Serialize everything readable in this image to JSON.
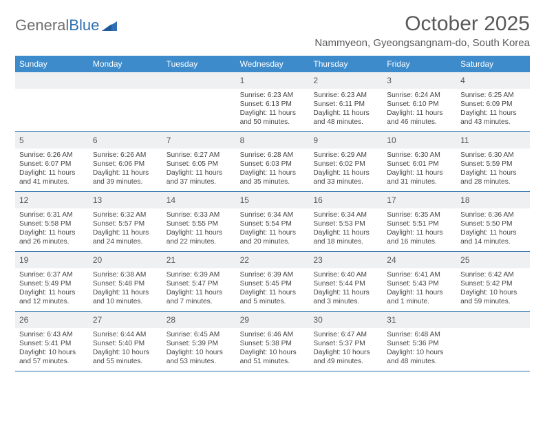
{
  "logo": {
    "text1": "General",
    "text2": "Blue"
  },
  "header": {
    "title": "October 2025",
    "subtitle": "Nammyeon, Gyeongsangnam-do, South Korea"
  },
  "colors": {
    "header_bar": "#3d8bca",
    "week_border": "#2e6fa8",
    "daynum_bg": "#eef0f2",
    "title_color": "#595959",
    "text_color": "#444444",
    "logo_gray": "#6f6f6f",
    "logo_blue": "#2f6fb3"
  },
  "weekdays": [
    "Sunday",
    "Monday",
    "Tuesday",
    "Wednesday",
    "Thursday",
    "Friday",
    "Saturday"
  ],
  "weeks": [
    [
      {
        "n": "",
        "lines": [
          "",
          "",
          "",
          ""
        ]
      },
      {
        "n": "",
        "lines": [
          "",
          "",
          "",
          ""
        ]
      },
      {
        "n": "",
        "lines": [
          "",
          "",
          "",
          ""
        ]
      },
      {
        "n": "1",
        "lines": [
          "Sunrise: 6:23 AM",
          "Sunset: 6:13 PM",
          "Daylight: 11 hours",
          "and 50 minutes."
        ]
      },
      {
        "n": "2",
        "lines": [
          "Sunrise: 6:23 AM",
          "Sunset: 6:11 PM",
          "Daylight: 11 hours",
          "and 48 minutes."
        ]
      },
      {
        "n": "3",
        "lines": [
          "Sunrise: 6:24 AM",
          "Sunset: 6:10 PM",
          "Daylight: 11 hours",
          "and 46 minutes."
        ]
      },
      {
        "n": "4",
        "lines": [
          "Sunrise: 6:25 AM",
          "Sunset: 6:09 PM",
          "Daylight: 11 hours",
          "and 43 minutes."
        ]
      }
    ],
    [
      {
        "n": "5",
        "lines": [
          "Sunrise: 6:26 AM",
          "Sunset: 6:07 PM",
          "Daylight: 11 hours",
          "and 41 minutes."
        ]
      },
      {
        "n": "6",
        "lines": [
          "Sunrise: 6:26 AM",
          "Sunset: 6:06 PM",
          "Daylight: 11 hours",
          "and 39 minutes."
        ]
      },
      {
        "n": "7",
        "lines": [
          "Sunrise: 6:27 AM",
          "Sunset: 6:05 PM",
          "Daylight: 11 hours",
          "and 37 minutes."
        ]
      },
      {
        "n": "8",
        "lines": [
          "Sunrise: 6:28 AM",
          "Sunset: 6:03 PM",
          "Daylight: 11 hours",
          "and 35 minutes."
        ]
      },
      {
        "n": "9",
        "lines": [
          "Sunrise: 6:29 AM",
          "Sunset: 6:02 PM",
          "Daylight: 11 hours",
          "and 33 minutes."
        ]
      },
      {
        "n": "10",
        "lines": [
          "Sunrise: 6:30 AM",
          "Sunset: 6:01 PM",
          "Daylight: 11 hours",
          "and 31 minutes."
        ]
      },
      {
        "n": "11",
        "lines": [
          "Sunrise: 6:30 AM",
          "Sunset: 5:59 PM",
          "Daylight: 11 hours",
          "and 28 minutes."
        ]
      }
    ],
    [
      {
        "n": "12",
        "lines": [
          "Sunrise: 6:31 AM",
          "Sunset: 5:58 PM",
          "Daylight: 11 hours",
          "and 26 minutes."
        ]
      },
      {
        "n": "13",
        "lines": [
          "Sunrise: 6:32 AM",
          "Sunset: 5:57 PM",
          "Daylight: 11 hours",
          "and 24 minutes."
        ]
      },
      {
        "n": "14",
        "lines": [
          "Sunrise: 6:33 AM",
          "Sunset: 5:55 PM",
          "Daylight: 11 hours",
          "and 22 minutes."
        ]
      },
      {
        "n": "15",
        "lines": [
          "Sunrise: 6:34 AM",
          "Sunset: 5:54 PM",
          "Daylight: 11 hours",
          "and 20 minutes."
        ]
      },
      {
        "n": "16",
        "lines": [
          "Sunrise: 6:34 AM",
          "Sunset: 5:53 PM",
          "Daylight: 11 hours",
          "and 18 minutes."
        ]
      },
      {
        "n": "17",
        "lines": [
          "Sunrise: 6:35 AM",
          "Sunset: 5:51 PM",
          "Daylight: 11 hours",
          "and 16 minutes."
        ]
      },
      {
        "n": "18",
        "lines": [
          "Sunrise: 6:36 AM",
          "Sunset: 5:50 PM",
          "Daylight: 11 hours",
          "and 14 minutes."
        ]
      }
    ],
    [
      {
        "n": "19",
        "lines": [
          "Sunrise: 6:37 AM",
          "Sunset: 5:49 PM",
          "Daylight: 11 hours",
          "and 12 minutes."
        ]
      },
      {
        "n": "20",
        "lines": [
          "Sunrise: 6:38 AM",
          "Sunset: 5:48 PM",
          "Daylight: 11 hours",
          "and 10 minutes."
        ]
      },
      {
        "n": "21",
        "lines": [
          "Sunrise: 6:39 AM",
          "Sunset: 5:47 PM",
          "Daylight: 11 hours",
          "and 7 minutes."
        ]
      },
      {
        "n": "22",
        "lines": [
          "Sunrise: 6:39 AM",
          "Sunset: 5:45 PM",
          "Daylight: 11 hours",
          "and 5 minutes."
        ]
      },
      {
        "n": "23",
        "lines": [
          "Sunrise: 6:40 AM",
          "Sunset: 5:44 PM",
          "Daylight: 11 hours",
          "and 3 minutes."
        ]
      },
      {
        "n": "24",
        "lines": [
          "Sunrise: 6:41 AM",
          "Sunset: 5:43 PM",
          "Daylight: 11 hours",
          "and 1 minute."
        ]
      },
      {
        "n": "25",
        "lines": [
          "Sunrise: 6:42 AM",
          "Sunset: 5:42 PM",
          "Daylight: 10 hours",
          "and 59 minutes."
        ]
      }
    ],
    [
      {
        "n": "26",
        "lines": [
          "Sunrise: 6:43 AM",
          "Sunset: 5:41 PM",
          "Daylight: 10 hours",
          "and 57 minutes."
        ]
      },
      {
        "n": "27",
        "lines": [
          "Sunrise: 6:44 AM",
          "Sunset: 5:40 PM",
          "Daylight: 10 hours",
          "and 55 minutes."
        ]
      },
      {
        "n": "28",
        "lines": [
          "Sunrise: 6:45 AM",
          "Sunset: 5:39 PM",
          "Daylight: 10 hours",
          "and 53 minutes."
        ]
      },
      {
        "n": "29",
        "lines": [
          "Sunrise: 6:46 AM",
          "Sunset: 5:38 PM",
          "Daylight: 10 hours",
          "and 51 minutes."
        ]
      },
      {
        "n": "30",
        "lines": [
          "Sunrise: 6:47 AM",
          "Sunset: 5:37 PM",
          "Daylight: 10 hours",
          "and 49 minutes."
        ]
      },
      {
        "n": "31",
        "lines": [
          "Sunrise: 6:48 AM",
          "Sunset: 5:36 PM",
          "Daylight: 10 hours",
          "and 48 minutes."
        ]
      },
      {
        "n": "",
        "lines": [
          "",
          "",
          "",
          ""
        ]
      }
    ]
  ]
}
